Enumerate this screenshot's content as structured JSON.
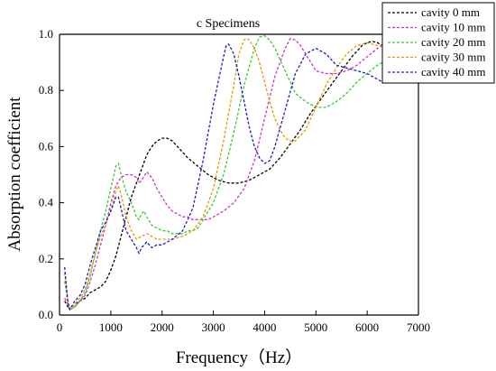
{
  "chart_data": {
    "type": "line",
    "title": "c Specimens",
    "xlabel": "Frequency（Hz）",
    "ylabel": "Absorption coefficient",
    "xlim": [
      0,
      7000
    ],
    "ylim": [
      0.0,
      1.0
    ],
    "x_ticks": [
      "0",
      "1000",
      "2000",
      "3000",
      "4000",
      "5000",
      "6000",
      "7000"
    ],
    "y_ticks": [
      "0.0",
      "0.2",
      "0.4",
      "0.6",
      "0.8",
      "1.0"
    ],
    "grid": false,
    "legend_position": "top-right",
    "series": [
      {
        "name": "cavity 0 mm",
        "color": "#000000",
        "points": [
          [
            100,
            0.05
          ],
          [
            160,
            0.03
          ],
          [
            200,
            0.02
          ],
          [
            300,
            0.04
          ],
          [
            400,
            0.05
          ],
          [
            500,
            0.06
          ],
          [
            600,
            0.08
          ],
          [
            700,
            0.09
          ],
          [
            800,
            0.1
          ],
          [
            900,
            0.12
          ],
          [
            1000,
            0.16
          ],
          [
            1100,
            0.21
          ],
          [
            1200,
            0.28
          ],
          [
            1300,
            0.35
          ],
          [
            1400,
            0.42
          ],
          [
            1500,
            0.47
          ],
          [
            1600,
            0.52
          ],
          [
            1700,
            0.57
          ],
          [
            1800,
            0.6
          ],
          [
            1900,
            0.62
          ],
          [
            2000,
            0.63
          ],
          [
            2100,
            0.63
          ],
          [
            2200,
            0.62
          ],
          [
            2300,
            0.6
          ],
          [
            2400,
            0.58
          ],
          [
            2500,
            0.56
          ],
          [
            2700,
            0.53
          ],
          [
            2900,
            0.5
          ],
          [
            3100,
            0.48
          ],
          [
            3300,
            0.47
          ],
          [
            3500,
            0.47
          ],
          [
            3700,
            0.48
          ],
          [
            3900,
            0.5
          ],
          [
            4100,
            0.52
          ],
          [
            4300,
            0.56
          ],
          [
            4500,
            0.61
          ],
          [
            4700,
            0.66
          ],
          [
            4900,
            0.72
          ],
          [
            5100,
            0.77
          ],
          [
            5300,
            0.82
          ],
          [
            5500,
            0.87
          ],
          [
            5700,
            0.92
          ],
          [
            5900,
            0.96
          ],
          [
            6000,
            0.97
          ],
          [
            6100,
            0.975
          ],
          [
            6200,
            0.97
          ],
          [
            6300,
            0.96
          ]
        ]
      },
      {
        "name": "cavity 10 mm",
        "color": "#cc33cc",
        "points": [
          [
            100,
            0.06
          ],
          [
            160,
            0.04
          ],
          [
            200,
            0.02
          ],
          [
            300,
            0.03
          ],
          [
            400,
            0.05
          ],
          [
            500,
            0.07
          ],
          [
            600,
            0.12
          ],
          [
            700,
            0.18
          ],
          [
            800,
            0.25
          ],
          [
            900,
            0.32
          ],
          [
            1000,
            0.4
          ],
          [
            1100,
            0.46
          ],
          [
            1200,
            0.49
          ],
          [
            1300,
            0.5
          ],
          [
            1400,
            0.5
          ],
          [
            1500,
            0.49
          ],
          [
            1550,
            0.47
          ],
          [
            1600,
            0.48
          ],
          [
            1700,
            0.51
          ],
          [
            1800,
            0.49
          ],
          [
            1900,
            0.45
          ],
          [
            2000,
            0.42
          ],
          [
            2100,
            0.39
          ],
          [
            2200,
            0.37
          ],
          [
            2300,
            0.36
          ],
          [
            2400,
            0.35
          ],
          [
            2500,
            0.35
          ],
          [
            2600,
            0.34
          ],
          [
            2700,
            0.34
          ],
          [
            2800,
            0.34
          ],
          [
            2900,
            0.34
          ],
          [
            3000,
            0.35
          ],
          [
            3200,
            0.37
          ],
          [
            3400,
            0.4
          ],
          [
            3600,
            0.45
          ],
          [
            3800,
            0.55
          ],
          [
            4000,
            0.7
          ],
          [
            4200,
            0.85
          ],
          [
            4400,
            0.95
          ],
          [
            4500,
            0.985
          ],
          [
            4600,
            0.98
          ],
          [
            4700,
            0.96
          ],
          [
            4800,
            0.93
          ],
          [
            4900,
            0.9
          ],
          [
            5000,
            0.87
          ],
          [
            5200,
            0.86
          ],
          [
            5400,
            0.86
          ],
          [
            5600,
            0.87
          ],
          [
            5800,
            0.89
          ],
          [
            6000,
            0.92
          ],
          [
            6200,
            0.95
          ],
          [
            6300,
            0.96
          ]
        ]
      },
      {
        "name": "cavity 20 mm",
        "color": "#33cc33",
        "points": [
          [
            100,
            0.12
          ],
          [
            160,
            0.05
          ],
          [
            200,
            0.02
          ],
          [
            300,
            0.03
          ],
          [
            400,
            0.05
          ],
          [
            500,
            0.08
          ],
          [
            600,
            0.14
          ],
          [
            700,
            0.22
          ],
          [
            800,
            0.3
          ],
          [
            900,
            0.37
          ],
          [
            1000,
            0.45
          ],
          [
            1100,
            0.53
          ],
          [
            1150,
            0.54
          ],
          [
            1200,
            0.5
          ],
          [
            1300,
            0.44
          ],
          [
            1400,
            0.4
          ],
          [
            1500,
            0.35
          ],
          [
            1550,
            0.34
          ],
          [
            1600,
            0.36
          ],
          [
            1650,
            0.37
          ],
          [
            1700,
            0.35
          ],
          [
            1800,
            0.32
          ],
          [
            1900,
            0.31
          ],
          [
            2000,
            0.3
          ],
          [
            2100,
            0.3
          ],
          [
            2200,
            0.29
          ],
          [
            2300,
            0.29
          ],
          [
            2400,
            0.29
          ],
          [
            2500,
            0.3
          ],
          [
            2600,
            0.3
          ],
          [
            2700,
            0.31
          ],
          [
            2800,
            0.34
          ],
          [
            3000,
            0.4
          ],
          [
            3200,
            0.5
          ],
          [
            3400,
            0.65
          ],
          [
            3600,
            0.82
          ],
          [
            3800,
            0.95
          ],
          [
            3900,
            0.99
          ],
          [
            4000,
            0.995
          ],
          [
            4100,
            0.98
          ],
          [
            4200,
            0.95
          ],
          [
            4300,
            0.91
          ],
          [
            4400,
            0.87
          ],
          [
            4500,
            0.83
          ],
          [
            4600,
            0.79
          ],
          [
            4800,
            0.76
          ],
          [
            5000,
            0.74
          ],
          [
            5200,
            0.74
          ],
          [
            5400,
            0.76
          ],
          [
            5600,
            0.79
          ],
          [
            5800,
            0.83
          ],
          [
            6000,
            0.86
          ],
          [
            6200,
            0.89
          ],
          [
            6300,
            0.9
          ]
        ]
      },
      {
        "name": "cavity 30 mm",
        "color": "#e69900",
        "points": [
          [
            100,
            0.15
          ],
          [
            160,
            0.05
          ],
          [
            200,
            0.02
          ],
          [
            300,
            0.04
          ],
          [
            400,
            0.06
          ],
          [
            500,
            0.09
          ],
          [
            600,
            0.15
          ],
          [
            700,
            0.22
          ],
          [
            800,
            0.28
          ],
          [
            900,
            0.32
          ],
          [
            1000,
            0.38
          ],
          [
            1100,
            0.44
          ],
          [
            1150,
            0.46
          ],
          [
            1200,
            0.43
          ],
          [
            1300,
            0.35
          ],
          [
            1400,
            0.3
          ],
          [
            1500,
            0.27
          ],
          [
            1600,
            0.28
          ],
          [
            1700,
            0.29
          ],
          [
            1800,
            0.28
          ],
          [
            1900,
            0.27
          ],
          [
            2000,
            0.27
          ],
          [
            2200,
            0.27
          ],
          [
            2400,
            0.28
          ],
          [
            2600,
            0.3
          ],
          [
            2800,
            0.35
          ],
          [
            3000,
            0.45
          ],
          [
            3200,
            0.62
          ],
          [
            3400,
            0.82
          ],
          [
            3500,
            0.93
          ],
          [
            3600,
            0.98
          ],
          [
            3650,
            0.985
          ],
          [
            3700,
            0.98
          ],
          [
            3800,
            0.95
          ],
          [
            3900,
            0.9
          ],
          [
            4000,
            0.83
          ],
          [
            4100,
            0.76
          ],
          [
            4200,
            0.7
          ],
          [
            4300,
            0.66
          ],
          [
            4400,
            0.63
          ],
          [
            4500,
            0.62
          ],
          [
            4600,
            0.62
          ],
          [
            4800,
            0.66
          ],
          [
            5000,
            0.74
          ],
          [
            5200,
            0.82
          ],
          [
            5400,
            0.88
          ],
          [
            5600,
            0.93
          ],
          [
            5800,
            0.96
          ],
          [
            6000,
            0.97
          ],
          [
            6200,
            0.96
          ],
          [
            6300,
            0.96
          ]
        ]
      },
      {
        "name": "cavity 40 mm",
        "color": "#1a1acc",
        "points": [
          [
            100,
            0.17
          ],
          [
            160,
            0.05
          ],
          [
            200,
            0.02
          ],
          [
            300,
            0.05
          ],
          [
            400,
            0.07
          ],
          [
            500,
            0.11
          ],
          [
            600,
            0.18
          ],
          [
            700,
            0.24
          ],
          [
            800,
            0.3
          ],
          [
            900,
            0.33
          ],
          [
            1000,
            0.37
          ],
          [
            1100,
            0.42
          ],
          [
            1150,
            0.42
          ],
          [
            1200,
            0.38
          ],
          [
            1300,
            0.3
          ],
          [
            1400,
            0.27
          ],
          [
            1500,
            0.24
          ],
          [
            1550,
            0.22
          ],
          [
            1600,
            0.24
          ],
          [
            1700,
            0.26
          ],
          [
            1800,
            0.24
          ],
          [
            1900,
            0.25
          ],
          [
            2000,
            0.25
          ],
          [
            2200,
            0.27
          ],
          [
            2400,
            0.3
          ],
          [
            2600,
            0.38
          ],
          [
            2800,
            0.55
          ],
          [
            3000,
            0.75
          ],
          [
            3200,
            0.92
          ],
          [
            3250,
            0.96
          ],
          [
            3300,
            0.965
          ],
          [
            3400,
            0.93
          ],
          [
            3500,
            0.85
          ],
          [
            3600,
            0.76
          ],
          [
            3700,
            0.67
          ],
          [
            3800,
            0.6
          ],
          [
            3900,
            0.56
          ],
          [
            4000,
            0.54
          ],
          [
            4100,
            0.55
          ],
          [
            4200,
            0.6
          ],
          [
            4400,
            0.73
          ],
          [
            4600,
            0.86
          ],
          [
            4800,
            0.93
          ],
          [
            5000,
            0.95
          ],
          [
            5200,
            0.93
          ],
          [
            5400,
            0.89
          ],
          [
            5600,
            0.88
          ],
          [
            5800,
            0.87
          ],
          [
            6000,
            0.86
          ],
          [
            6200,
            0.84
          ],
          [
            6300,
            0.83
          ]
        ]
      }
    ]
  }
}
